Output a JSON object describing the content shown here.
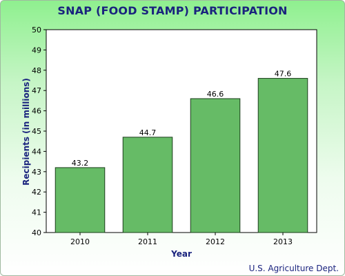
{
  "title": "SNAP (FOOD STAMP) PARTICIPATION",
  "source": "U.S. Agriculture Dept.",
  "colors": {
    "bar": "#66bb66",
    "bar_stroke": "#1b3d1b",
    "title": "#1a237e"
  },
  "chart_data": {
    "type": "bar",
    "title": "SNAP (FOOD STAMP) PARTICIPATION",
    "xlabel": "Year",
    "ylabel": "Recipients (in millions)",
    "categories": [
      "2010",
      "2011",
      "2012",
      "2013"
    ],
    "values": [
      43.2,
      44.7,
      46.6,
      47.6
    ],
    "data_labels": [
      "43.2",
      "44.7",
      "46.6",
      "47.6"
    ],
    "ylim": [
      40,
      50
    ],
    "yticks": [
      40,
      41,
      42,
      43,
      44,
      45,
      46,
      47,
      48,
      49,
      50
    ],
    "grid": false,
    "legend": "none"
  }
}
